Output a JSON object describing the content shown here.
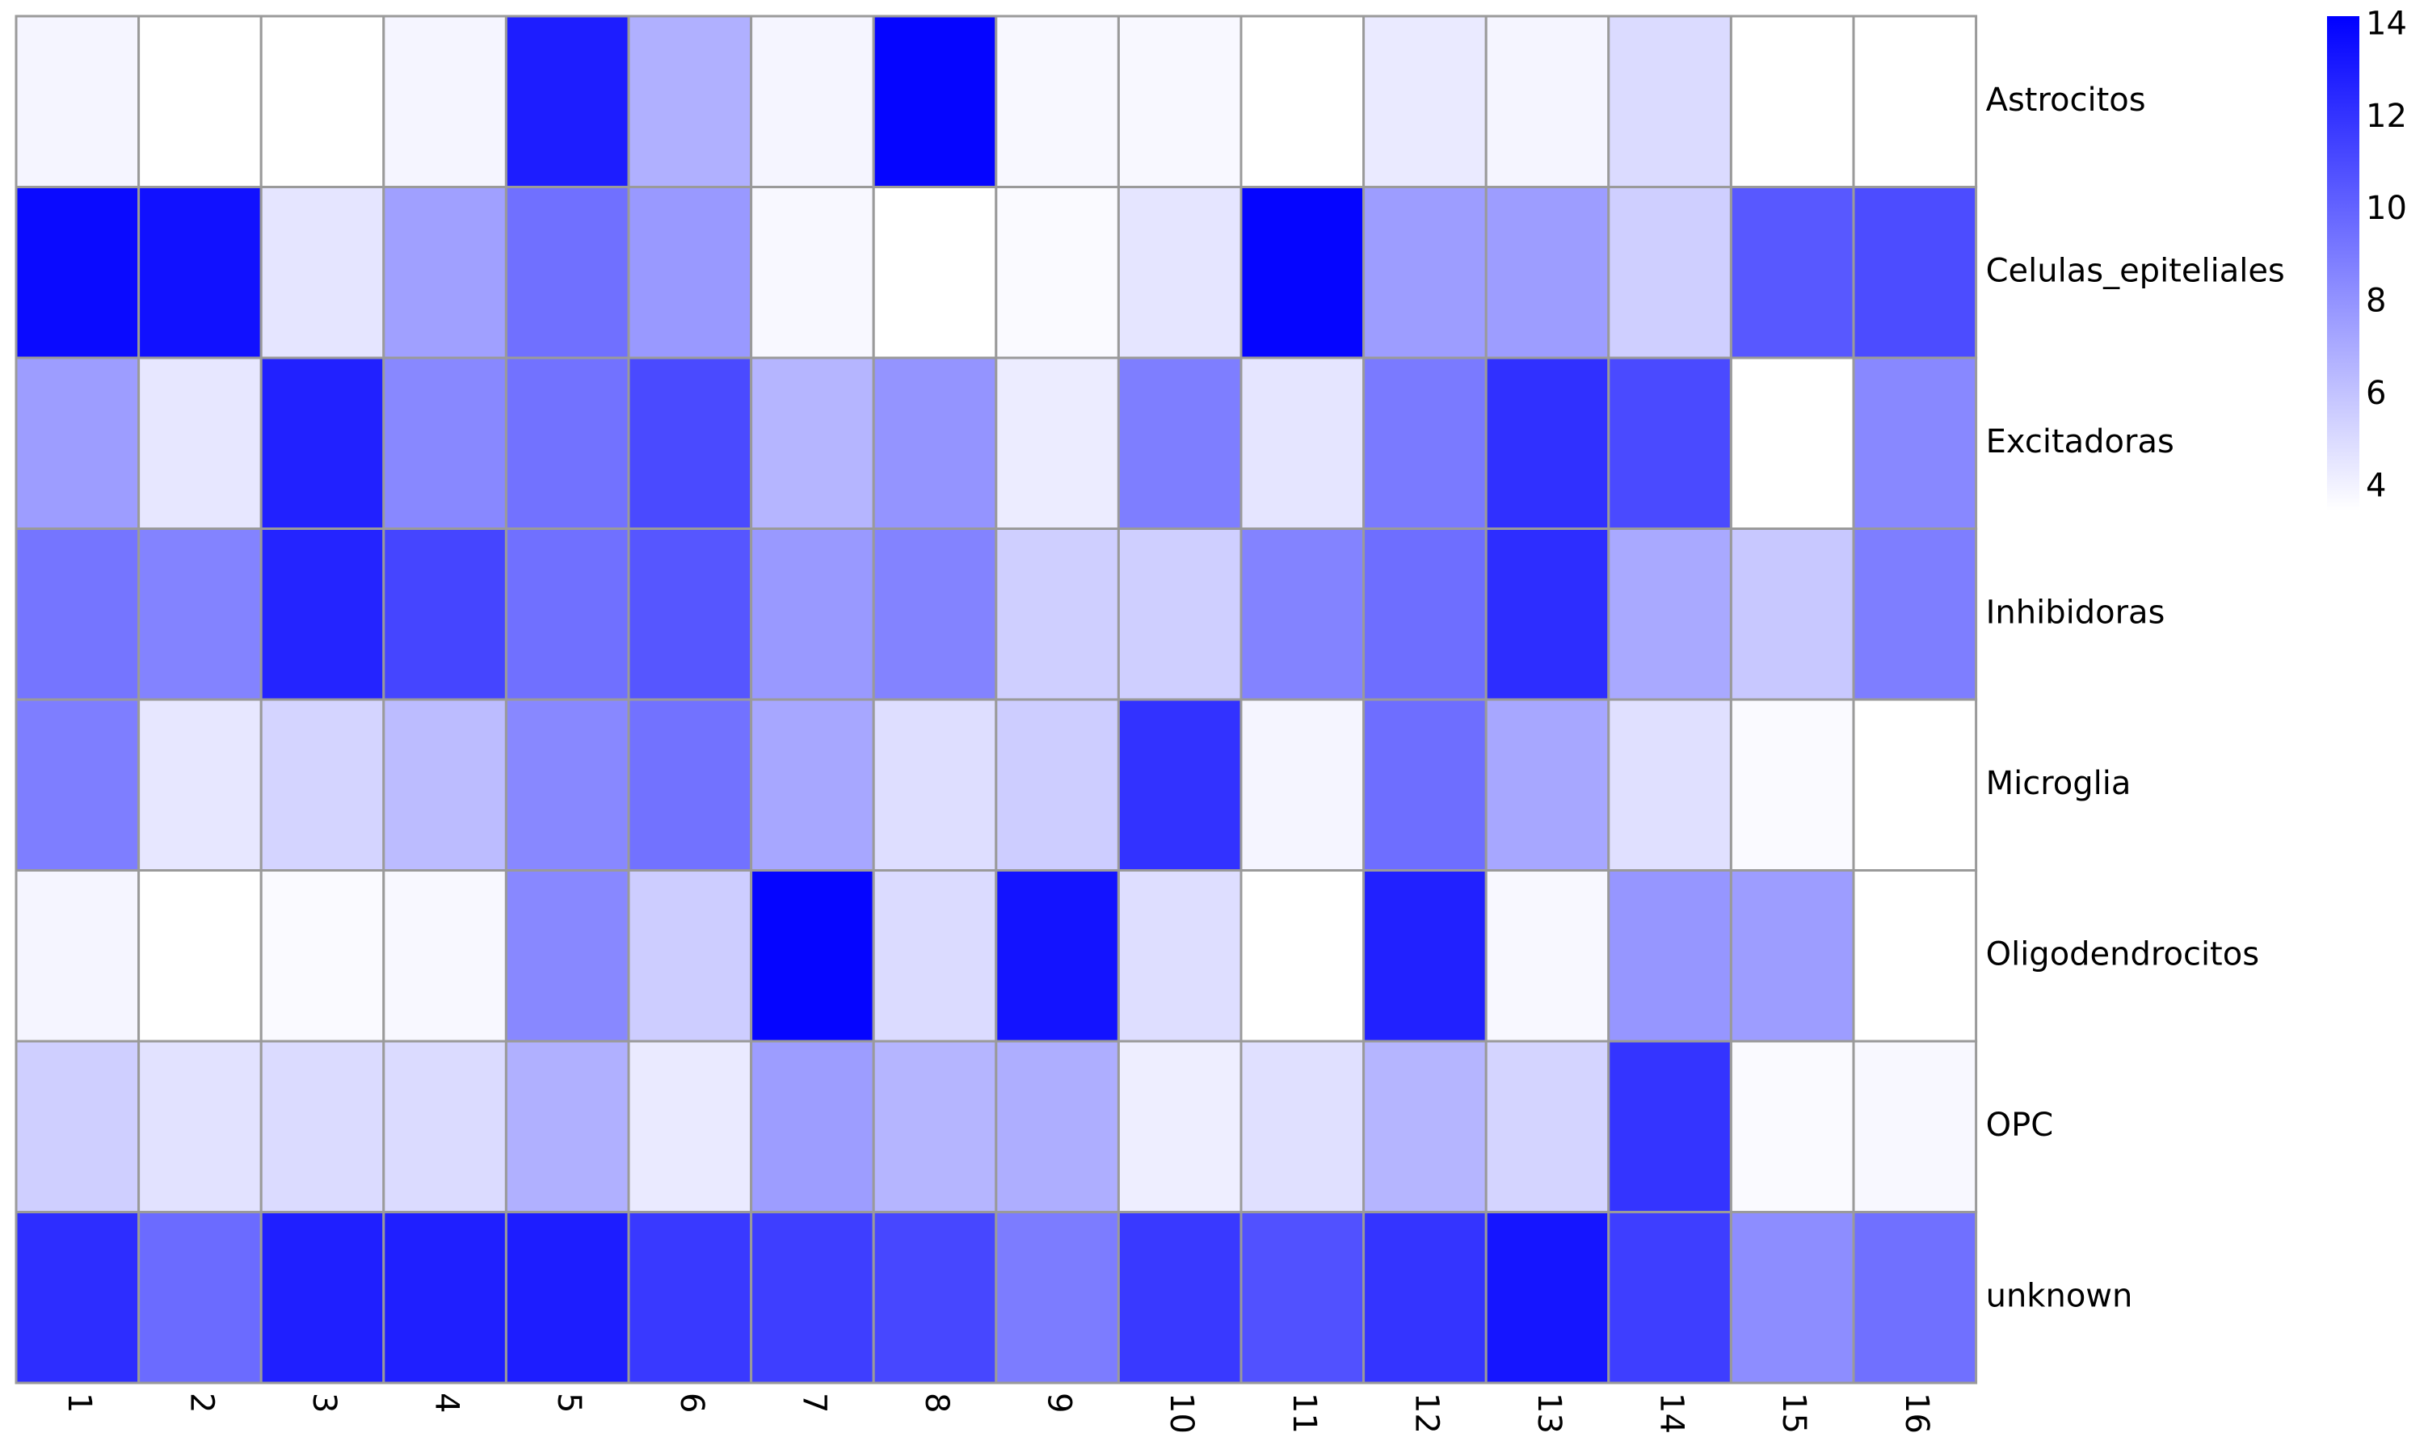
{
  "chart_data": {
    "type": "heatmap",
    "title": "",
    "xlabel": "",
    "ylabel": "",
    "rows": [
      "Astrocitos",
      "Celulas_epiteliales",
      "Excitadoras",
      "Inhibidoras",
      "Microglia",
      "Oligodendrocitos",
      "OPC",
      "unknown"
    ],
    "columns": [
      "1",
      "2",
      "3",
      "4",
      "5",
      "6",
      "7",
      "8",
      "9",
      "10",
      "11",
      "12",
      "13",
      "14",
      "15",
      "16"
    ],
    "values": [
      [
        3.9,
        3.5,
        3.5,
        3.9,
        13.0,
        6.8,
        3.9,
        14.0,
        3.8,
        3.8,
        3.5,
        4.4,
        3.9,
        5.0,
        3.5,
        3.5
      ],
      [
        13.8,
        13.5,
        4.6,
        7.5,
        9.5,
        7.8,
        3.8,
        3.5,
        3.7,
        4.6,
        14.0,
        7.6,
        7.6,
        5.5,
        10.5,
        11.0
      ],
      [
        7.6,
        4.5,
        12.8,
        8.5,
        9.4,
        11.1,
        6.6,
        8.0,
        4.3,
        8.9,
        4.6,
        9.1,
        12.2,
        11.1,
        3.5,
        8.5
      ],
      [
        9.3,
        8.7,
        12.7,
        11.3,
        9.5,
        10.6,
        7.8,
        8.7,
        5.5,
        5.5,
        8.7,
        9.6,
        12.3,
        7.1,
        5.8,
        8.9
      ],
      [
        8.9,
        4.5,
        5.3,
        6.3,
        8.5,
        9.4,
        7.2,
        4.9,
        5.6,
        12.1,
        3.9,
        9.6,
        7.2,
        4.8,
        3.7,
        3.5
      ],
      [
        3.9,
        3.5,
        3.7,
        3.8,
        8.5,
        5.6,
        14.0,
        5.0,
        13.4,
        4.9,
        3.5,
        12.8,
        3.8,
        7.9,
        7.6,
        3.5
      ],
      [
        5.5,
        4.7,
        5.0,
        5.0,
        6.8,
        4.4,
        7.6,
        6.6,
        6.9,
        4.2,
        4.8,
        6.6,
        5.3,
        12.0,
        3.7,
        3.8
      ],
      [
        12.3,
        9.7,
        12.9,
        12.9,
        13.0,
        11.8,
        11.6,
        11.2,
        9.0,
        11.8,
        10.8,
        12.0,
        13.3,
        11.6,
        8.3,
        9.5
      ]
    ],
    "color_range": [
      3.5,
      14.2
    ],
    "colorbar_ticks": [
      4,
      6,
      8,
      10,
      12,
      14
    ],
    "color_low": "#ffffff",
    "color_high": "#0000ff",
    "grid_color": "#9a9a9a",
    "legend": "colorbar right"
  }
}
